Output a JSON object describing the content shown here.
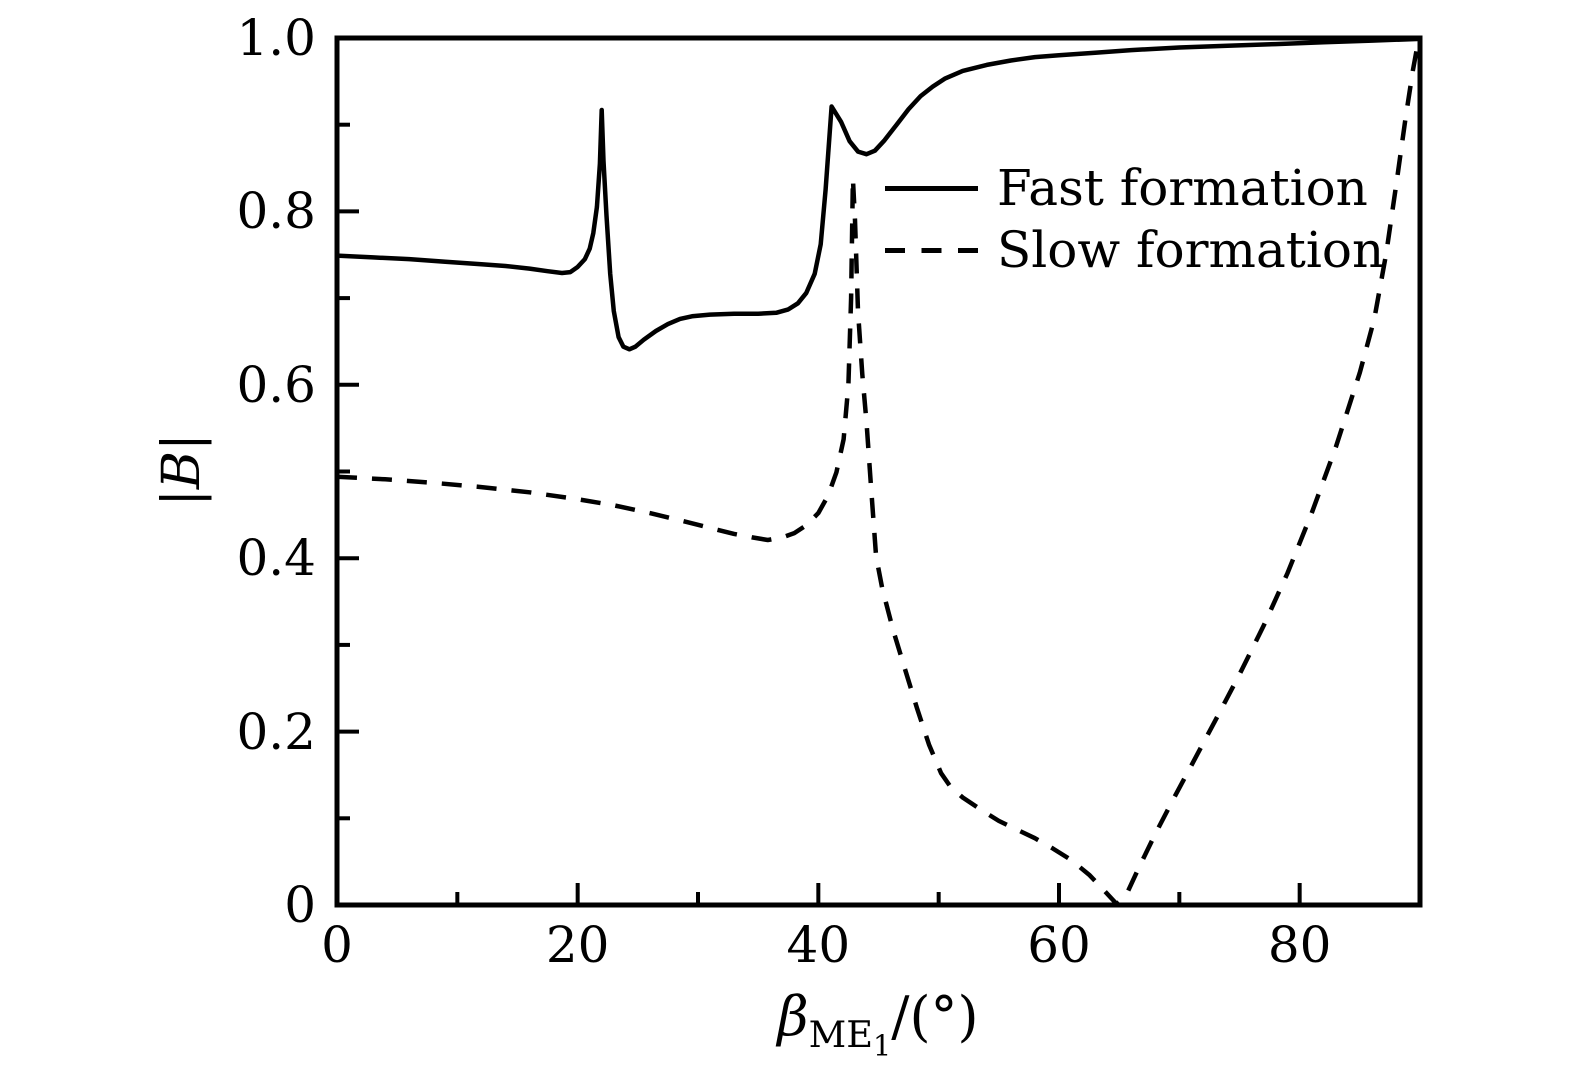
{
  "figure": {
    "background": "#ffffff",
    "line_color": "#000000",
    "ylabel_parts": {
      "left_bar": "|",
      "symbol": "B",
      "right_bar": "|"
    },
    "xlabel_parts": {
      "symbol": "β",
      "subscript": "ME",
      "subsubscript": "1",
      "suffix": "/(°)"
    }
  },
  "legend": {
    "items": [
      {
        "label": "Fast formation",
        "style": "solid"
      },
      {
        "label": "Slow formation",
        "style": "dashed"
      }
    ]
  },
  "chart_data": {
    "type": "line",
    "title": "",
    "xlabel": "β_ME1/(°)",
    "ylabel": "|B|",
    "xlim": [
      0,
      90
    ],
    "ylim": [
      0,
      1.0
    ],
    "grid": false,
    "legend_position": "upper right area, no frame",
    "x_axis": {
      "major_ticks": [
        0,
        20,
        40,
        60,
        80
      ],
      "major_labels": [
        "0",
        "20",
        "40",
        "60",
        "80"
      ],
      "minor_ticks": [
        10,
        30,
        50,
        70
      ]
    },
    "y_axis": {
      "major_ticks": [
        0,
        0.2,
        0.4,
        0.6,
        0.8,
        1.0
      ],
      "major_labels": [
        "0",
        "0.2",
        "0.4",
        "0.6",
        "0.8",
        "1.0"
      ],
      "minor_ticks": [
        0.1,
        0.3,
        0.5,
        0.7,
        0.9
      ]
    },
    "series": [
      {
        "name": "Fast formation",
        "id": "fast-formation",
        "style": "solid",
        "color": "#000000",
        "points": [
          [
            0,
            0.749
          ],
          [
            3,
            0.747
          ],
          [
            6,
            0.745
          ],
          [
            9,
            0.742
          ],
          [
            12,
            0.739
          ],
          [
            14,
            0.737
          ],
          [
            16,
            0.734
          ],
          [
            17.5,
            0.731
          ],
          [
            18.7,
            0.729
          ],
          [
            19.4,
            0.73
          ],
          [
            20.0,
            0.736
          ],
          [
            20.6,
            0.745
          ],
          [
            21.0,
            0.757
          ],
          [
            21.3,
            0.775
          ],
          [
            21.6,
            0.805
          ],
          [
            21.85,
            0.855
          ],
          [
            22.0,
            0.917
          ],
          [
            22.15,
            0.858
          ],
          [
            22.4,
            0.795
          ],
          [
            22.7,
            0.728
          ],
          [
            23.0,
            0.685
          ],
          [
            23.4,
            0.655
          ],
          [
            23.8,
            0.644
          ],
          [
            24.3,
            0.641
          ],
          [
            24.8,
            0.644
          ],
          [
            25.5,
            0.652
          ],
          [
            26.5,
            0.662
          ],
          [
            27.5,
            0.67
          ],
          [
            28.5,
            0.676
          ],
          [
            29.5,
            0.679
          ],
          [
            31,
            0.681
          ],
          [
            33,
            0.682
          ],
          [
            35,
            0.682
          ],
          [
            36.5,
            0.683
          ],
          [
            37.5,
            0.687
          ],
          [
            38.3,
            0.694
          ],
          [
            39.0,
            0.706
          ],
          [
            39.7,
            0.728
          ],
          [
            40.2,
            0.762
          ],
          [
            40.6,
            0.825
          ],
          [
            41.1,
            0.921
          ],
          [
            41.9,
            0.903
          ],
          [
            42.6,
            0.881
          ],
          [
            43.3,
            0.869
          ],
          [
            44.0,
            0.866
          ],
          [
            44.7,
            0.87
          ],
          [
            45.5,
            0.882
          ],
          [
            46.5,
            0.9
          ],
          [
            47.5,
            0.918
          ],
          [
            48.5,
            0.933
          ],
          [
            49.5,
            0.944
          ],
          [
            50.5,
            0.953
          ],
          [
            52,
            0.962
          ],
          [
            54,
            0.969
          ],
          [
            56,
            0.974
          ],
          [
            58,
            0.978
          ],
          [
            60,
            0.98
          ],
          [
            63,
            0.983
          ],
          [
            66,
            0.986
          ],
          [
            70,
            0.989
          ],
          [
            74,
            0.991
          ],
          [
            78,
            0.993
          ],
          [
            82,
            0.995
          ],
          [
            86,
            0.997
          ],
          [
            90,
            0.999
          ]
        ]
      },
      {
        "name": "Slow formation",
        "id": "slow-formation",
        "style": "dashed",
        "color": "#000000",
        "points": [
          [
            0,
            0.494
          ],
          [
            4,
            0.491
          ],
          [
            8,
            0.487
          ],
          [
            12,
            0.482
          ],
          [
            16,
            0.476
          ],
          [
            20,
            0.468
          ],
          [
            23,
            0.461
          ],
          [
            26,
            0.452
          ],
          [
            29,
            0.442
          ],
          [
            31,
            0.435
          ],
          [
            33,
            0.428
          ],
          [
            34.5,
            0.424
          ],
          [
            35.8,
            0.421
          ],
          [
            37,
            0.424
          ],
          [
            38,
            0.429
          ],
          [
            39,
            0.438
          ],
          [
            40,
            0.452
          ],
          [
            40.8,
            0.472
          ],
          [
            41.5,
            0.499
          ],
          [
            42.1,
            0.537
          ],
          [
            42.5,
            0.6
          ],
          [
            42.72,
            0.7
          ],
          [
            42.87,
            0.838
          ],
          [
            43.05,
            0.79
          ],
          [
            43.3,
            0.685
          ],
          [
            43.65,
            0.612
          ],
          [
            44.0,
            0.557
          ],
          [
            44.4,
            0.478
          ],
          [
            44.8,
            0.402
          ],
          [
            45.3,
            0.366
          ],
          [
            46.2,
            0.318
          ],
          [
            47.2,
            0.272
          ],
          [
            48.2,
            0.227
          ],
          [
            49.2,
            0.185
          ],
          [
            50.2,
            0.152
          ],
          [
            51,
            0.136
          ],
          [
            52,
            0.124
          ],
          [
            53.5,
            0.11
          ],
          [
            55,
            0.097
          ],
          [
            56.5,
            0.087
          ],
          [
            58,
            0.077
          ],
          [
            59.5,
            0.065
          ],
          [
            61,
            0.052
          ],
          [
            62.5,
            0.035
          ],
          [
            63.8,
            0.016
          ],
          [
            64.8,
            0.001
          ],
          [
            65.6,
            0.012
          ],
          [
            66.6,
            0.042
          ],
          [
            68,
            0.082
          ],
          [
            69.5,
            0.122
          ],
          [
            71,
            0.161
          ],
          [
            73,
            0.213
          ],
          [
            75,
            0.266
          ],
          [
            77,
            0.322
          ],
          [
            79,
            0.383
          ],
          [
            81,
            0.452
          ],
          [
            83,
            0.528
          ],
          [
            85,
            0.614
          ],
          [
            86.2,
            0.676
          ],
          [
            87.2,
            0.752
          ],
          [
            88.1,
            0.838
          ],
          [
            88.8,
            0.908
          ],
          [
            89.4,
            0.962
          ],
          [
            89.9,
            1.0
          ]
        ]
      }
    ]
  }
}
